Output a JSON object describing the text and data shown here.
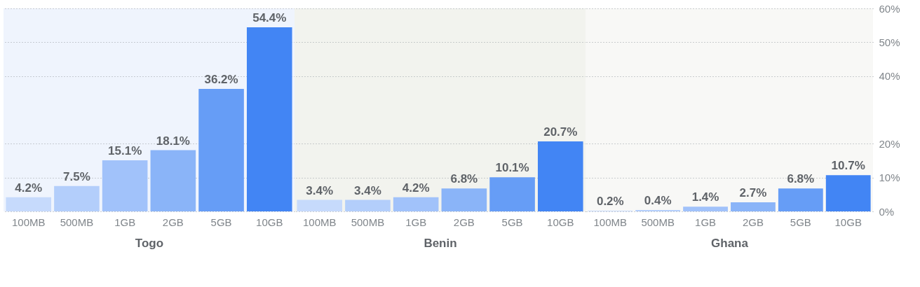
{
  "chart_data": [
    {
      "type": "bar",
      "xlabel": "Togo",
      "categories": [
        "100MB",
        "500MB",
        "1GB",
        "2GB",
        "5GB",
        "10GB"
      ],
      "values": [
        4.2,
        7.5,
        15.1,
        18.1,
        36.2,
        54.4
      ],
      "value_labels": [
        "4.2%",
        "7.5%",
        "15.1%",
        "18.1%",
        "36.2%",
        "54.4%"
      ],
      "colors": [
        "#c6dafc",
        "#b3cefb",
        "#a1c2fa",
        "#8ab4f8",
        "#669df6",
        "#4285f4"
      ],
      "ylim": [
        0,
        60
      ],
      "yticks": [
        0,
        10,
        20,
        40,
        50,
        60
      ],
      "grid": "y",
      "tick_labels": "x"
    },
    {
      "type": "bar",
      "xlabel": "Benin",
      "categories": [
        "100MB",
        "500MB",
        "1GB",
        "2GB",
        "5GB",
        "10GB"
      ],
      "values": [
        3.4,
        3.4,
        4.2,
        6.8,
        10.1,
        20.7
      ],
      "value_labels": [
        "3.4%",
        "3.4%",
        "4.2%",
        "6.8%",
        "10.1%",
        "20.7%"
      ],
      "colors": [
        "#c6dafc",
        "#b3cefb",
        "#a1c2fa",
        "#8ab4f8",
        "#669df6",
        "#4285f4"
      ],
      "ylim": [
        0,
        60
      ],
      "yticks": [
        0,
        10,
        20,
        40,
        50,
        60
      ],
      "grid": "y",
      "tick_labels": "x"
    },
    {
      "type": "bar",
      "xlabel": "Ghana",
      "categories": [
        "100MB",
        "500MB",
        "1GB",
        "2GB",
        "5GB",
        "10GB"
      ],
      "values": [
        0.2,
        0.4,
        1.4,
        2.7,
        6.8,
        10.7
      ],
      "value_labels": [
        "0.2%",
        "0.4%",
        "1.4%",
        "2.7%",
        "6.8%",
        "10.7%"
      ],
      "colors": [
        "#c6dafc",
        "#b3cefb",
        "#a1c2fa",
        "#8ab4f8",
        "#669df6",
        "#4285f4"
      ],
      "ylim": [
        0,
        60
      ],
      "yticks": [
        {
          "value": 0,
          "label": "0%"
        },
        {
          "value": 10,
          "label": "10%"
        },
        {
          "value": 20,
          "label": "20%"
        },
        {
          "value": 40,
          "label": "40%"
        },
        {
          "value": 50,
          "label": "50%"
        },
        {
          "value": 60,
          "label": "60%"
        }
      ],
      "grid": "y"
    }
  ]
}
